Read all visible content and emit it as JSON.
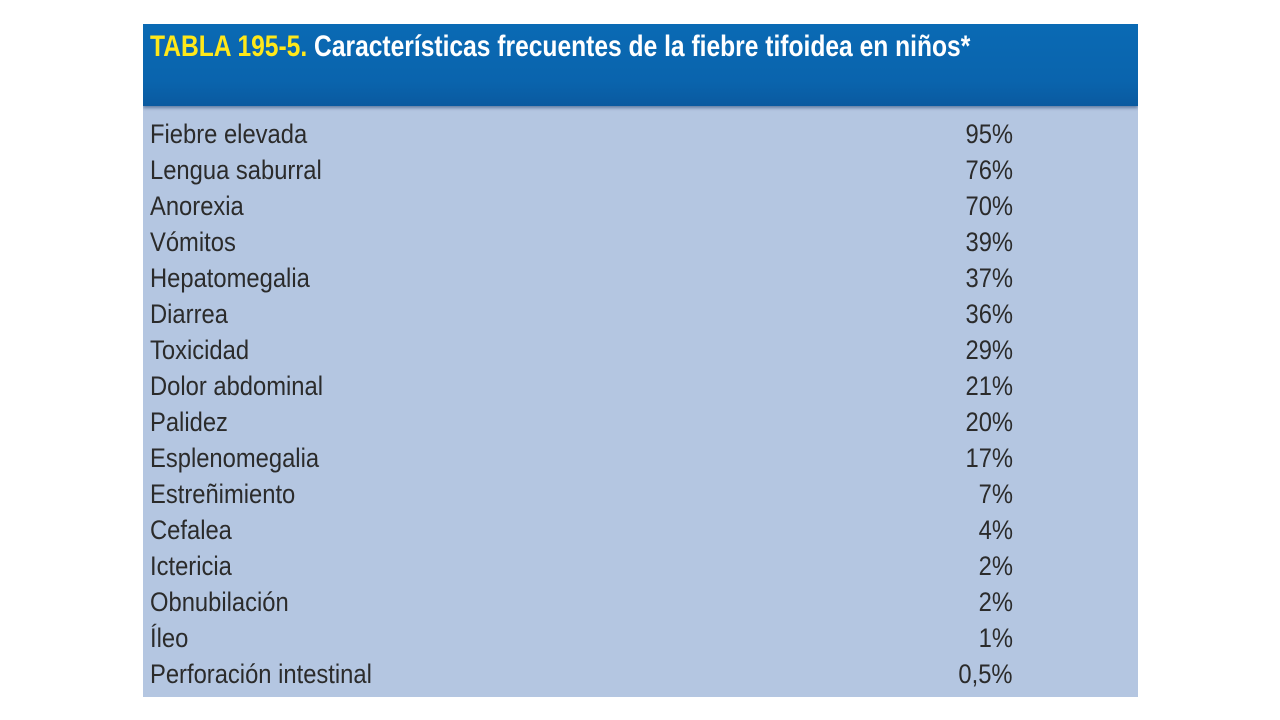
{
  "table": {
    "title_number": "TABLA 195-5.",
    "title_text": "Características frecuentes de la fiebre tifoidea en niños*",
    "rows": [
      {
        "feature": "Fiebre elevada",
        "value": "95%"
      },
      {
        "feature": "Lengua saburral",
        "value": "76%"
      },
      {
        "feature": "Anorexia",
        "value": "70%"
      },
      {
        "feature": "Vómitos",
        "value": "39%"
      },
      {
        "feature": "Hepatomegalia",
        "value": "37%"
      },
      {
        "feature": "Diarrea",
        "value": "36%"
      },
      {
        "feature": "Toxicidad",
        "value": "29%"
      },
      {
        "feature": "Dolor abdominal",
        "value": "21%"
      },
      {
        "feature": "Palidez",
        "value": "20%"
      },
      {
        "feature": "Esplenomegalia",
        "value": "17%"
      },
      {
        "feature": "Estreñimiento",
        "value": "7%"
      },
      {
        "feature": "Cefalea",
        "value": "4%"
      },
      {
        "feature": "Ictericia",
        "value": "2%"
      },
      {
        "feature": "Obnubilación",
        "value": "2%"
      },
      {
        "feature": "Íleo",
        "value": "1%"
      },
      {
        "feature": "Perforación intestinal",
        "value": "0,5%"
      }
    ]
  },
  "colors": {
    "header_bg": "#0a64ad",
    "title_number": "#ffe81a",
    "title_text": "#ffffff",
    "body_bg": "#b4c6e1",
    "row_text": "#2b2b2b"
  }
}
